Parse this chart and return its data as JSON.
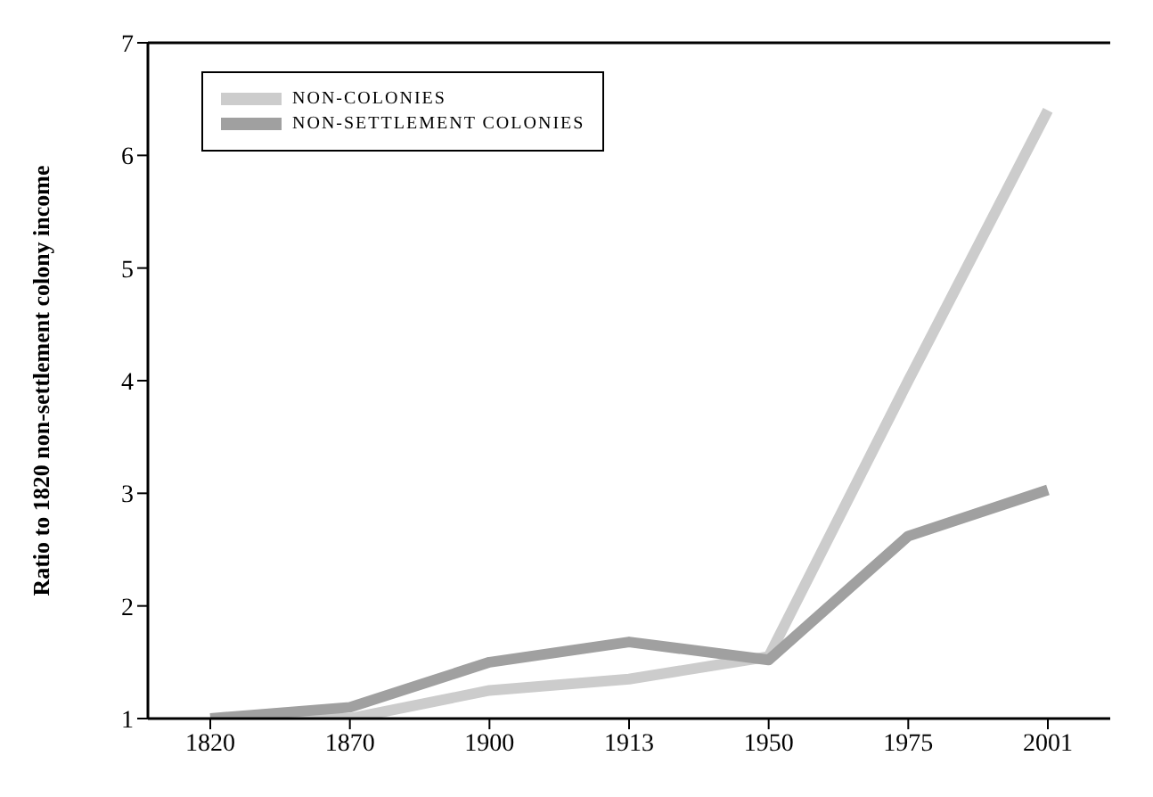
{
  "chart_data": {
    "type": "line",
    "ylabel": "Ratio to 1820 non-settlement colony income",
    "categories": [
      "1820",
      "1870",
      "1900",
      "1913",
      "1950",
      "1975",
      "2001"
    ],
    "series": [
      {
        "name": "NON-COLONIES",
        "color": "#cccccc",
        "values": [
          1.0,
          1.0,
          1.25,
          1.35,
          1.55,
          4.0,
          6.4
        ]
      },
      {
        "name": "NON-SETTLEMENT COLONIES",
        "color": "#a0a0a0",
        "values": [
          1.0,
          1.1,
          1.5,
          1.68,
          1.52,
          2.62,
          3.03
        ]
      }
    ],
    "ylim": [
      1,
      7
    ],
    "yticks": [
      1,
      2,
      3,
      4,
      5,
      6,
      7
    ],
    "grid": false,
    "legend": "top left",
    "marker": "none",
    "line_style": "solid"
  }
}
